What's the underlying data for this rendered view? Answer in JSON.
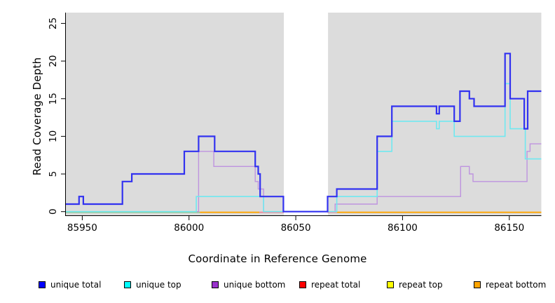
{
  "chart_data": {
    "type": "line",
    "subtype": "step-coverage",
    "title": "",
    "xlabel": "Coordinate in Reference Genome",
    "ylabel": "Read Coverage Depth",
    "xlim": [
      85942,
      86165
    ],
    "ylim": [
      0,
      26.5
    ],
    "x_ticks": [
      "85950",
      "86000",
      "86050",
      "86100",
      "86150"
    ],
    "x_tick_values": [
      85950,
      86000,
      86050,
      86100,
      86150
    ],
    "y_ticks": [
      "0",
      "5",
      "10",
      "15",
      "20",
      "25"
    ],
    "y_tick_values": [
      0,
      5,
      10,
      15,
      20,
      25
    ],
    "grid": "off",
    "plot_bg_color": "#DCDCDC",
    "gap_region": {
      "x_start": 86044.4,
      "x_end": 86065.1,
      "color": "#FFFFFF",
      "meaning": "white vertical band with no shading"
    },
    "series": [
      {
        "name": "unique total",
        "color": "#3232F0",
        "legend_color": "#0000FF",
        "line_width": 2.2,
        "x_end": 86165,
        "points": [
          [
            85942,
            1
          ],
          [
            85948.5,
            2
          ],
          [
            85950.5,
            1
          ],
          [
            85968.8,
            4
          ],
          [
            85973.2,
            5
          ],
          [
            85997.8,
            8
          ],
          [
            86004.5,
            10
          ],
          [
            86012,
            8
          ],
          [
            86031,
            6
          ],
          [
            86032.4,
            5
          ],
          [
            86033.3,
            2
          ],
          [
            86044.2,
            0
          ],
          [
            86064.9,
            2
          ],
          [
            86069.2,
            3
          ],
          [
            86088.1,
            10
          ],
          [
            86095,
            14
          ],
          [
            86115.9,
            13
          ],
          [
            86117.2,
            14
          ],
          [
            86124.2,
            12
          ],
          [
            86126.9,
            16
          ],
          [
            86131.3,
            15
          ],
          [
            86133.5,
            14
          ],
          [
            86148,
            21
          ],
          [
            86150.4,
            15
          ],
          [
            86157,
            11
          ],
          [
            86158.6,
            16
          ]
        ]
      },
      {
        "name": "unique top",
        "color": "#70E8F0",
        "legend_color": "#00FFFF",
        "line_width": 1.6,
        "x_end": 86165,
        "points": [
          [
            85942,
            0
          ],
          [
            86003.4,
            2
          ],
          [
            86034.9,
            0
          ],
          [
            86069.2,
            2
          ],
          [
            86088.1,
            8
          ],
          [
            86095,
            12
          ],
          [
            86115.9,
            11
          ],
          [
            86117.2,
            12
          ],
          [
            86124.2,
            10
          ],
          [
            86148,
            17
          ],
          [
            86150.4,
            11
          ],
          [
            86157.5,
            7
          ]
        ]
      },
      {
        "name": "unique bottom",
        "color": "#BE93DF",
        "legend_color": "#9932CC",
        "line_width": 1.4,
        "x_end": 86165,
        "points": [
          [
            85942,
            0
          ],
          [
            86004.5,
            8
          ],
          [
            86011.6,
            6
          ],
          [
            86031,
            4
          ],
          [
            86032.4,
            3
          ],
          [
            86034.9,
            0
          ],
          [
            86068.4,
            1
          ],
          [
            86088.1,
            2
          ],
          [
            86127.2,
            6
          ],
          [
            86131.3,
            5
          ],
          [
            86133,
            4
          ],
          [
            86158.3,
            8
          ],
          [
            86159.7,
            9
          ]
        ]
      },
      {
        "name": "repeat total",
        "color": "#EE8899",
        "legend_color": "#FF0000",
        "line_width": 1.4,
        "x_end": 86165,
        "drawn_as": "baseline-segment",
        "points": [
          [
            85942,
            0
          ]
        ],
        "note": "flat at 0 across the whole range; visible as pink baseline near the gap region"
      },
      {
        "name": "repeat top",
        "color": "#8FC98E",
        "legend_color": "#FFFF00",
        "line_width": 1.4,
        "x_end": 86165,
        "drawn_as": "baseline-segment",
        "points": [
          [
            85942,
            0
          ]
        ],
        "note": "flat at 0 across the whole range; visible as pale green baseline on the left"
      },
      {
        "name": "repeat bottom",
        "color": "#FFA500",
        "legend_color": "#FFA500",
        "line_width": 1.8,
        "x_end": 86165,
        "drawn_as": "baseline-segment",
        "points": [
          [
            85942,
            0
          ]
        ],
        "note": "flat at 0 across the whole range; visible as orange baseline"
      }
    ],
    "baseline_segments": [
      {
        "from": 85942,
        "to": 86005.1,
        "color": "#8FC98E",
        "value": 0
      },
      {
        "from": 86005.1,
        "to": 86032.9,
        "color": "#FFA500",
        "value": 0
      },
      {
        "from": 86032.9,
        "to": 86044.4,
        "color": "#EE8899",
        "value": 0
      },
      {
        "from": 86064.9,
        "to": 86069.2,
        "color": "#EE8899",
        "value": 0
      },
      {
        "from": 86069.2,
        "to": 86165,
        "color": "#FFA500",
        "value": 0
      }
    ],
    "axis_color": "#000000"
  },
  "legend": {
    "position": "bottom",
    "items": [
      {
        "label": "unique total",
        "color": "#0000FF"
      },
      {
        "label": "unique top",
        "color": "#00FFFF"
      },
      {
        "label": "unique bottom",
        "color": "#9932CC"
      },
      {
        "label": "repeat total",
        "color": "#FF0000"
      },
      {
        "label": "repeat top",
        "color": "#FFFF00"
      },
      {
        "label": "repeat bottom",
        "color": "#FFA500"
      }
    ]
  }
}
